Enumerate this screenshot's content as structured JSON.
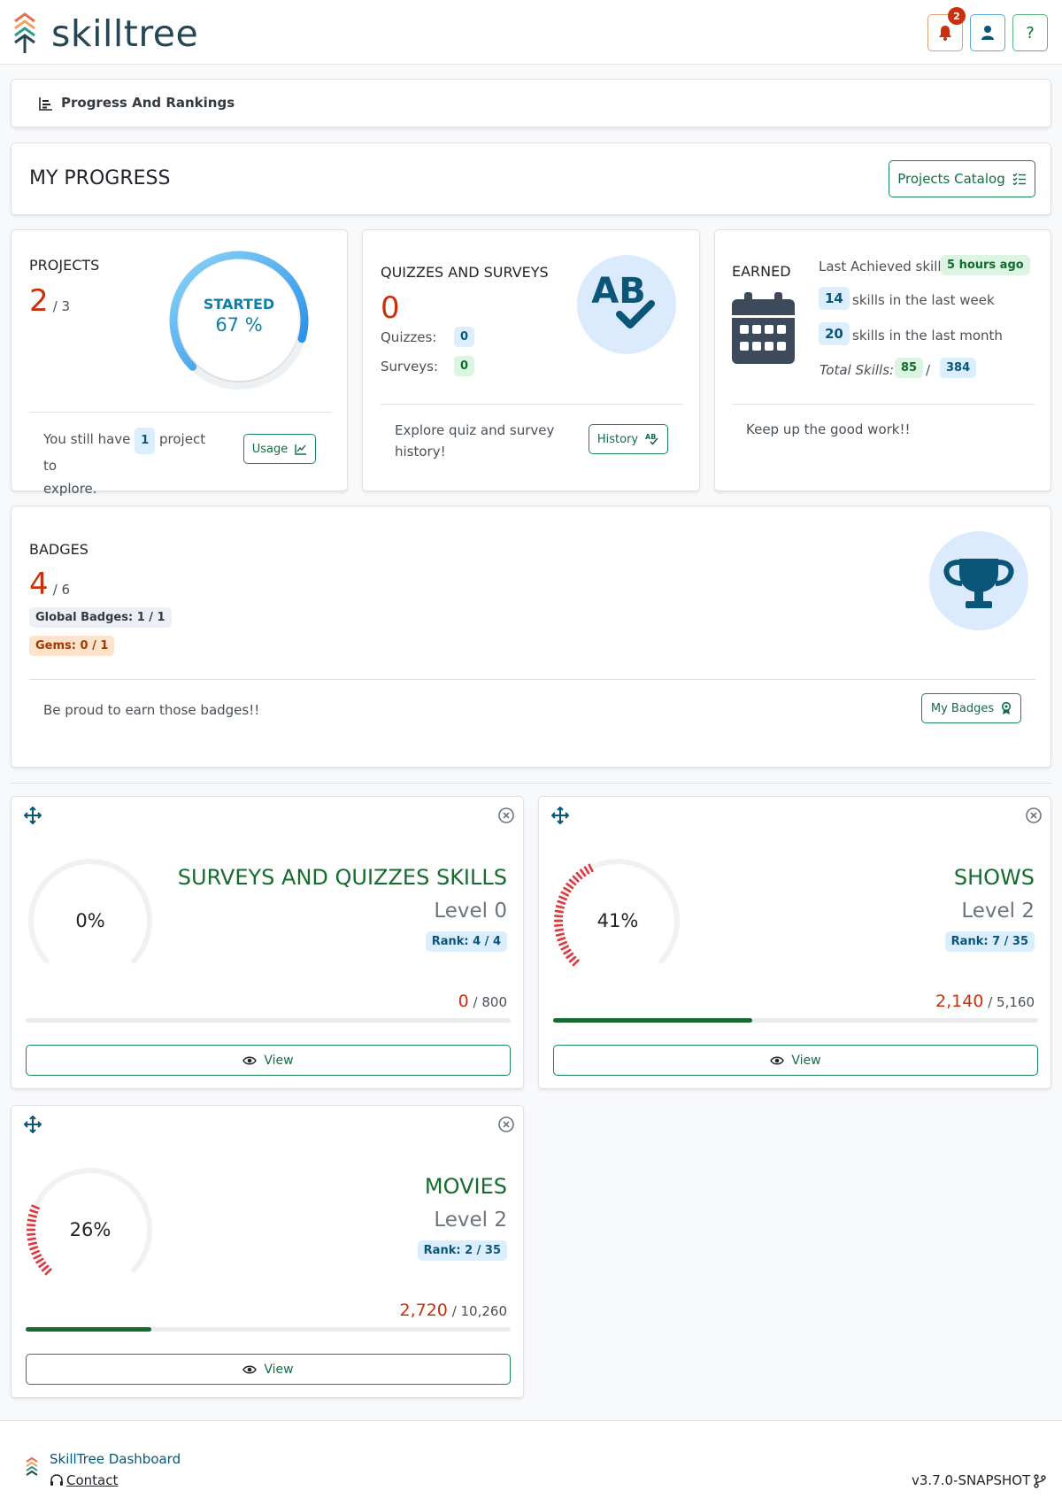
{
  "app": {
    "logo_text": "skilltree",
    "notification_count": "2"
  },
  "header_icons": {
    "bell": "bell-icon",
    "user": "user-icon",
    "help_label": "?"
  },
  "breadcrumb": {
    "label": "Progress And Rankings"
  },
  "page": {
    "title": "MY PROGRESS",
    "catalog_button": "Projects Catalog"
  },
  "projects": {
    "title": "PROJECTS",
    "count": "2",
    "total": "/ 3",
    "gauge_label": "STARTED",
    "gauge_value": "67 %",
    "gauge_fraction": 0.67,
    "footer_pre": "You still have",
    "footer_count": "1",
    "footer_post": "project to",
    "footer_line2": "explore.",
    "usage_button": "Usage"
  },
  "quizzes": {
    "title": "QUIZZES AND SURVEYS",
    "count": "0",
    "quizzes_label": "Quizzes:",
    "quizzes_value": "0",
    "surveys_label": "Surveys:",
    "surveys_value": "0",
    "footer_line1": "Explore quiz and survey",
    "footer_line2": "history!",
    "history_button": "History",
    "icon_text": "AB"
  },
  "earned": {
    "title": "EARNED",
    "last_label": "Last Achieved skill",
    "last_value": "5 hours ago",
    "week_count": "14",
    "week_label": "skills in the last week",
    "month_count": "20",
    "month_label": "skills in the last month",
    "total_label": "Total Skills:",
    "total_earned": "85",
    "total_sep": "/",
    "total_all": "384",
    "footer": "Keep up the good work!!"
  },
  "badges": {
    "title": "BADGES",
    "count": "4",
    "total": "/ 6",
    "global": "Global Badges: 1 / 1",
    "gems": "Gems: 0 / 1",
    "footer": "Be proud to earn those badges!!",
    "button": "My Badges"
  },
  "subjects": [
    {
      "name": "SURVEYS AND QUIZZES SKILLS",
      "percent": "0%",
      "level": "Level 0",
      "rank": "Rank: 4 / 4",
      "points": "0",
      "total": "/ 800",
      "fraction": 0.0,
      "level_fraction": 0.0,
      "view": "View"
    },
    {
      "name": "SHOWS",
      "percent": "41%",
      "level": "Level 2",
      "rank": "Rank: 7 / 35",
      "points": "2,140",
      "total": "/ 5,160",
      "fraction": 0.41,
      "level_fraction": 0.41,
      "view": "View"
    },
    {
      "name": "MOVIES",
      "percent": "26%",
      "level": "Level 2",
      "rank": "Rank: 2 / 35",
      "points": "2,720",
      "total": "/ 10,260",
      "fraction": 0.26,
      "level_fraction": 0.26,
      "view": "View"
    }
  ],
  "footer": {
    "title": "SkillTree Dashboard",
    "contact": "Contact",
    "version": "v3.7.0-SNAPSHOT"
  },
  "colors": {
    "brand": "#264653",
    "accent_green": "#146c2e",
    "accent_orange": "#c9310e",
    "gauge_blue": "#1e90ff",
    "gauge_red": "#d9363e"
  }
}
